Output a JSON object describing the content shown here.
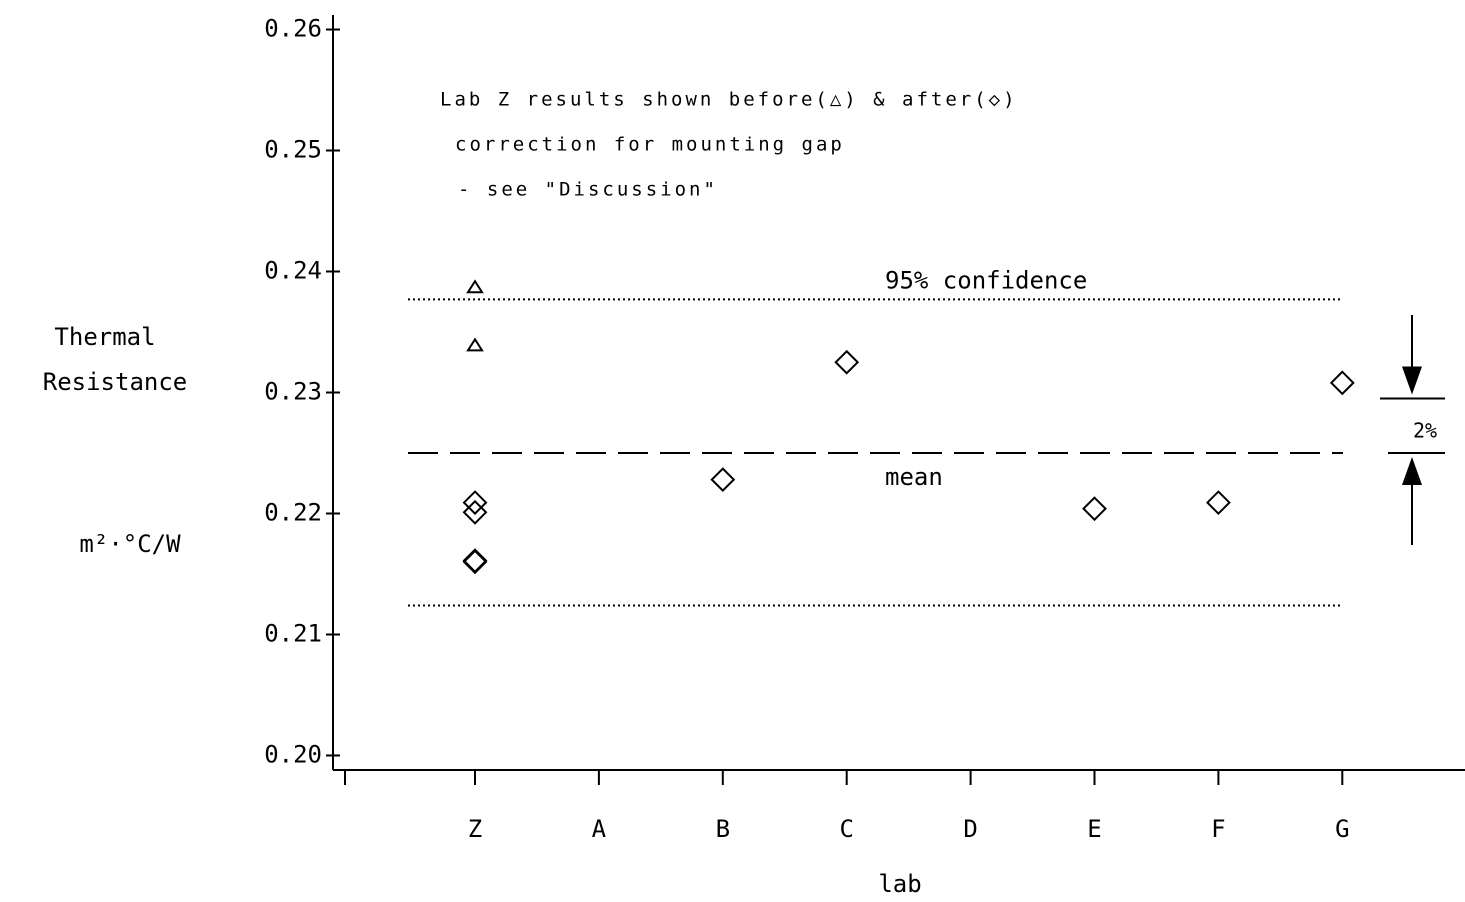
{
  "chart_data": {
    "type": "scatter",
    "ylabel": [
      "Thermal",
      "Resistance"
    ],
    "yunit": "m²·°C/W",
    "xlabel": "lab",
    "annotation": [
      "Lab Z results shown before(△) & after(◇)",
      "correction for mounting gap",
      "- see \"Discussion\""
    ],
    "categories": [
      "Z",
      "A",
      "B",
      "C",
      "D",
      "E",
      "F",
      "G"
    ],
    "ylim": [
      0.1988,
      0.2612
    ],
    "yticks": [
      {
        "value": 0.2,
        "label": "0.20"
      },
      0.21,
      0.22,
      0.23,
      0.24,
      0.25,
      0.26
    ],
    "series": [
      {
        "marker": "triangle",
        "color": "#000000",
        "x": [
          "Z",
          "Z"
        ],
        "values": [
          0.2387,
          0.2339
        ]
      },
      {
        "marker": "diamond",
        "color": "#000000",
        "x": [
          "Z",
          "Z",
          "Z",
          "Z",
          "B",
          "C",
          "E",
          "F",
          "G"
        ],
        "values": [
          0.2209,
          0.2201,
          0.2161,
          0.216,
          0.2228,
          0.2325,
          0.2204,
          0.2209,
          0.2308
        ]
      }
    ],
    "reference_lines": [
      {
        "value": 0.2377,
        "style": "dotted",
        "label": "95% confidence"
      },
      {
        "value": 0.225,
        "style": "dashed",
        "label": "mean"
      },
      {
        "value": 0.2124,
        "style": "dotted"
      }
    ],
    "range_marker": {
      "from": 0.225,
      "to": 0.2295,
      "label": "2%"
    }
  }
}
